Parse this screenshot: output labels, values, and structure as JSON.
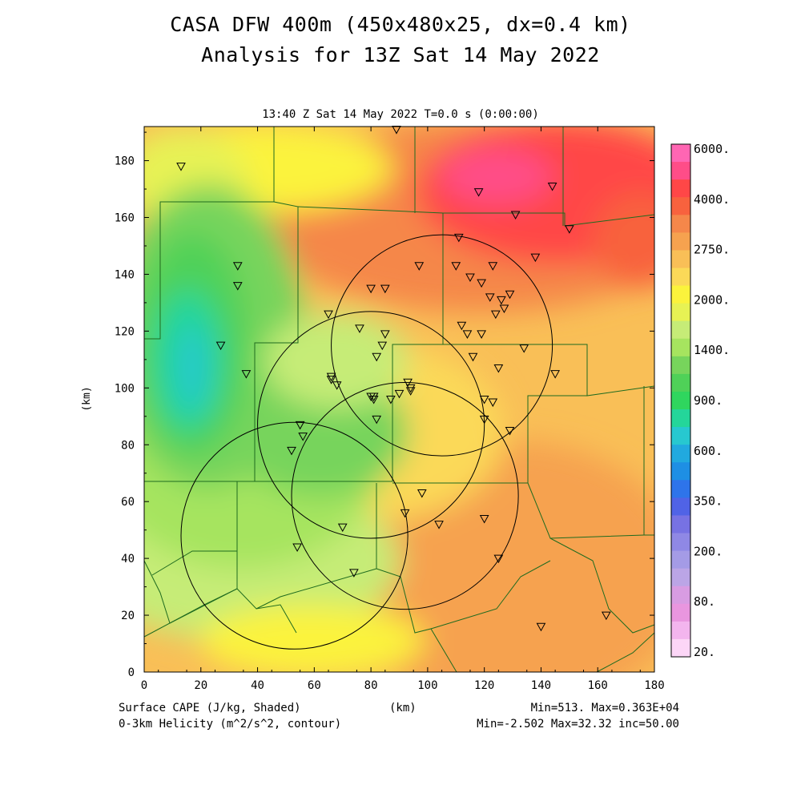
{
  "title_line1": "CASA DFW 400m (450x480x25, dx=0.4 km)",
  "title_line2": "Analysis for 13Z Sat 14 May 2022",
  "subtitle": "13:40 Z Sat 14 May 2022    T=0.0 s (0:00:00)",
  "footer": {
    "left1": "Surface CAPE (J/kg, Shaded)",
    "left2": "0-3km Helicity (m^2/s^2, contour)",
    "center": "(km)",
    "right1": "Min=513. Max=0.363E+04",
    "right2": "Min=-2.502 Max=32.32 inc=50.00"
  },
  "chart_data": {
    "type": "heatmap",
    "xlabel": "",
    "ylabel": "(km)",
    "xlim": [
      0,
      180
    ],
    "ylim": [
      0,
      192
    ],
    "x_ticks": [
      0,
      20,
      40,
      60,
      80,
      100,
      120,
      140,
      160,
      180
    ],
    "y_ticks": [
      0,
      20,
      40,
      60,
      80,
      100,
      120,
      140,
      160,
      180
    ],
    "colorbar": {
      "labels": [
        "6000.",
        "4000.",
        "2750.",
        "2000.",
        "1400.",
        "900.",
        "600.",
        "350.",
        "200.",
        "80.",
        "20."
      ],
      "colors_top_to_bottom": [
        "#ff66b3",
        "#ff4d88",
        "#ff4747",
        "#f8623e",
        "#f5874a",
        "#f6a24f",
        "#f9bf57",
        "#fbd958",
        "#fbf33c",
        "#e7f254",
        "#c6ec77",
        "#a6e45f",
        "#77d45c",
        "#4fd158",
        "#2fd65e",
        "#24d69a",
        "#27c8d0",
        "#21a9df",
        "#1e8fe4",
        "#2e74ea",
        "#5063e6",
        "#7772e3",
        "#8f88e5",
        "#a49be6",
        "#bba5e6",
        "#d89ce2",
        "#e996df",
        "#f3b5ee",
        "#fcd6f7"
      ]
    },
    "cape_range": {
      "min": 513,
      "max": 3630
    },
    "helicity_range": {
      "min": -2.502,
      "max": 32.32,
      "inc": 50.0
    },
    "radar_rings_km": [
      {
        "cx": 105,
        "cy": 115,
        "r": 39
      },
      {
        "cx": 80,
        "cy": 87,
        "r": 40
      },
      {
        "cx": 92,
        "cy": 62,
        "r": 40
      },
      {
        "cx": 53,
        "cy": 48,
        "r": 40
      }
    ],
    "stations_km": [
      [
        89,
        191
      ],
      [
        13,
        178
      ],
      [
        118,
        169
      ],
      [
        144,
        171
      ],
      [
        131,
        161
      ],
      [
        150,
        156
      ],
      [
        111,
        153
      ],
      [
        138,
        146
      ],
      [
        33,
        143
      ],
      [
        97,
        143
      ],
      [
        110,
        143
      ],
      [
        123,
        143
      ],
      [
        115,
        139
      ],
      [
        119,
        137
      ],
      [
        33,
        136
      ],
      [
        80,
        135
      ],
      [
        85,
        135
      ],
      [
        129,
        133
      ],
      [
        122,
        132
      ],
      [
        126,
        131
      ],
      [
        127,
        128
      ],
      [
        124,
        126
      ],
      [
        65,
        126
      ],
      [
        112,
        122
      ],
      [
        76,
        121
      ],
      [
        114,
        119
      ],
      [
        119,
        119
      ],
      [
        85,
        119
      ],
      [
        134,
        114
      ],
      [
        27,
        115
      ],
      [
        84,
        115
      ],
      [
        82,
        111
      ],
      [
        116,
        111
      ],
      [
        125,
        107
      ],
      [
        145,
        105
      ],
      [
        36,
        105
      ],
      [
        66,
        104
      ],
      [
        66,
        103
      ],
      [
        93,
        102
      ],
      [
        68,
        101
      ],
      [
        94,
        100
      ],
      [
        94,
        99
      ],
      [
        90,
        98
      ],
      [
        80,
        97
      ],
      [
        81,
        97
      ],
      [
        81,
        96
      ],
      [
        87,
        96
      ],
      [
        120,
        96
      ],
      [
        123,
        95
      ],
      [
        120,
        89
      ],
      [
        82,
        89
      ],
      [
        55,
        87
      ],
      [
        129,
        85
      ],
      [
        56,
        83
      ],
      [
        52,
        78
      ],
      [
        98,
        63
      ],
      [
        92,
        56
      ],
      [
        120,
        54
      ],
      [
        104,
        52
      ],
      [
        70,
        51
      ],
      [
        54,
        44
      ],
      [
        125,
        40
      ],
      [
        74,
        35
      ],
      [
        140,
        16
      ],
      [
        163,
        20
      ]
    ]
  }
}
